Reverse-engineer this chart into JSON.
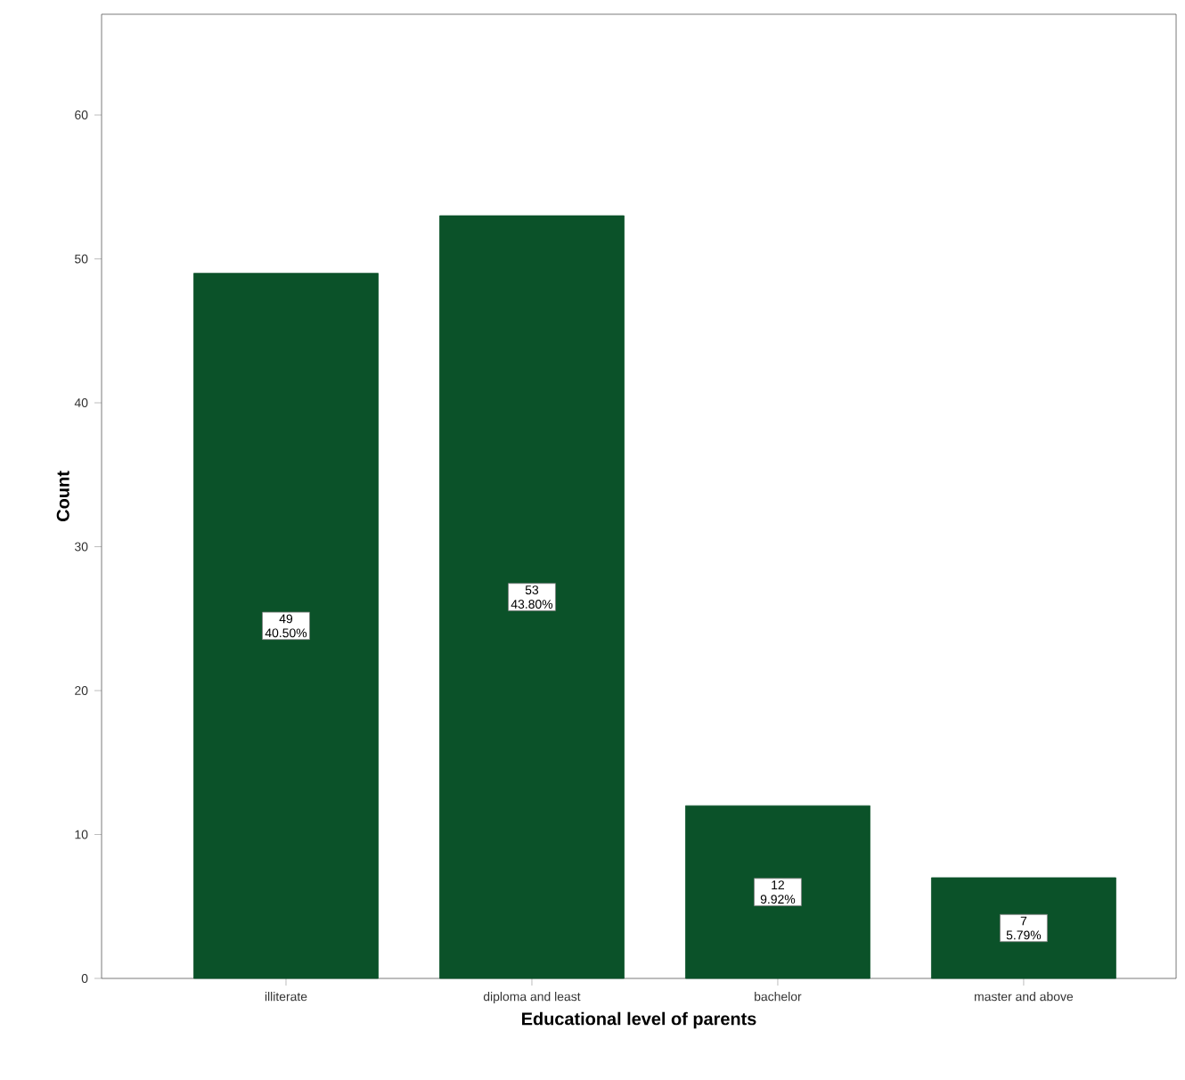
{
  "chart_data": {
    "type": "bar",
    "xlabel": "Educational level of parents",
    "ylabel": "Count",
    "categories": [
      "illiterate",
      "diploma and least",
      "bachelor",
      "master and above"
    ],
    "values": [
      49,
      53,
      12,
      7
    ],
    "value_labels": [
      "49 40.50%",
      "53 43.80%",
      "12 9.92%",
      "7 5.79%"
    ],
    "color": "#0b5229",
    "ylim": [
      0,
      67
    ],
    "yticks": [
      0,
      10,
      20,
      30,
      40,
      50,
      60
    ]
  }
}
